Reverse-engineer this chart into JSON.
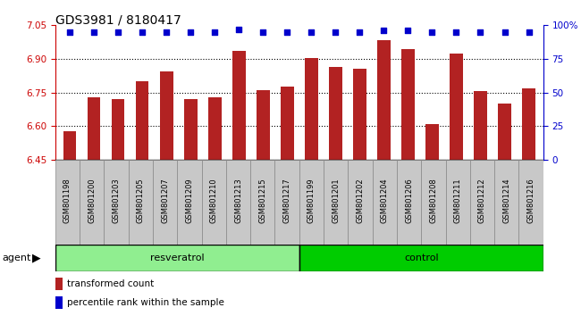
{
  "title": "GDS3981 / 8180417",
  "samples": [
    "GSM801198",
    "GSM801200",
    "GSM801203",
    "GSM801205",
    "GSM801207",
    "GSM801209",
    "GSM801210",
    "GSM801213",
    "GSM801215",
    "GSM801217",
    "GSM801199",
    "GSM801201",
    "GSM801202",
    "GSM801204",
    "GSM801206",
    "GSM801208",
    "GSM801211",
    "GSM801212",
    "GSM801214",
    "GSM801216"
  ],
  "bar_values": [
    6.575,
    6.73,
    6.72,
    6.8,
    6.845,
    6.72,
    6.73,
    6.935,
    6.76,
    6.775,
    6.905,
    6.865,
    6.855,
    6.985,
    6.945,
    6.61,
    6.925,
    6.755,
    6.7,
    6.77
  ],
  "percentile_values": [
    95,
    95,
    95,
    95,
    95,
    95,
    95,
    97,
    95,
    95,
    95,
    95,
    95,
    96,
    96,
    95,
    95,
    95,
    95,
    95
  ],
  "n_resv": 10,
  "n_ctrl": 10,
  "bar_color": "#B22222",
  "dot_color": "#0000CC",
  "ylim_left": [
    6.45,
    7.05
  ],
  "ylim_right": [
    0,
    100
  ],
  "yticks_left": [
    6.45,
    6.6,
    6.75,
    6.9,
    7.05
  ],
  "yticks_right": [
    0,
    25,
    50,
    75,
    100
  ],
  "ytick_labels_right": [
    "0",
    "25",
    "50",
    "75",
    "100%"
  ],
  "grid_values": [
    6.6,
    6.75,
    6.9
  ],
  "agent_label": "agent",
  "legend_bar_label": "transformed count",
  "legend_dot_label": "percentile rank within the sample",
  "bg_color": "#C8C8C8",
  "resv_color": "#90EE90",
  "ctrl_color": "#00CC00",
  "plot_bg_color": "#FFFFFF",
  "title_fontsize": 10,
  "axis_label_color": "#CC0000",
  "right_axis_color": "#0000CC",
  "resv_label": "resveratrol",
  "ctrl_label": "control"
}
